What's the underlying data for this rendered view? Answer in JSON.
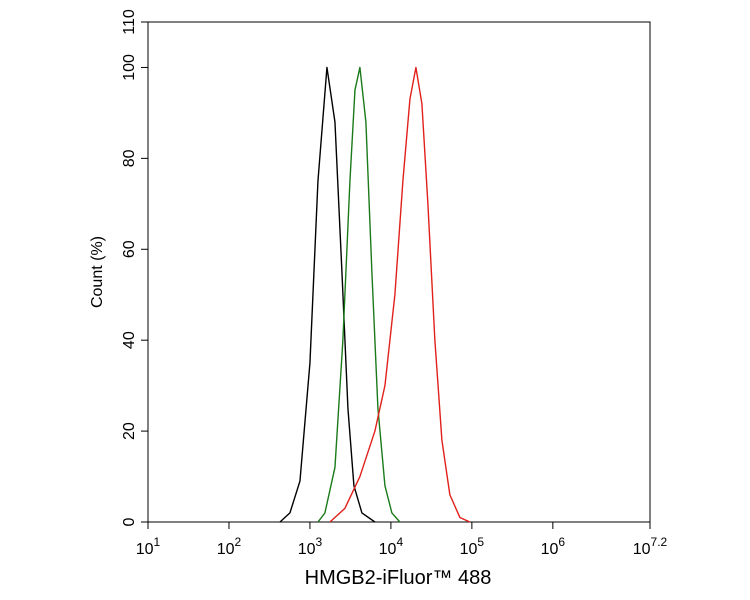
{
  "chart_data": {
    "type": "line",
    "xlabel": "HMGB2-iFluor™ 488",
    "ylabel": "Count  (%)",
    "xscale": "log",
    "xlim": [
      10,
      15848932
    ],
    "xticks": [
      {
        "value": 10,
        "label": "10",
        "sup": "1"
      },
      {
        "value": 100,
        "label": "10",
        "sup": "2"
      },
      {
        "value": 1000,
        "label": "10",
        "sup": "3"
      },
      {
        "value": 10000,
        "label": "10",
        "sup": "4"
      },
      {
        "value": 100000,
        "label": "10",
        "sup": "5"
      },
      {
        "value": 1000000,
        "label": "10",
        "sup": "6"
      },
      {
        "value": 15848932,
        "label": "10",
        "sup": "7.2"
      }
    ],
    "ylim": [
      0,
      110
    ],
    "yticks": [
      0,
      20,
      40,
      60,
      80,
      100,
      110
    ],
    "series": [
      {
        "color": "#000000",
        "x": [
          427,
          566,
          753,
          1000,
          1256,
          1622,
          2037,
          2485,
          2946,
          3493,
          4385,
          6344
        ],
        "values": [
          0,
          2,
          9,
          35,
          75,
          100,
          88,
          55,
          25,
          8,
          2,
          0
        ]
      },
      {
        "color": "#1a7a1a",
        "x": [
          1256,
          1531,
          2037,
          2553,
          3119,
          3597,
          4141,
          4911,
          5823,
          6912,
          8437,
          10280,
          12910
        ],
        "values": [
          0,
          2,
          12,
          40,
          75,
          95,
          100,
          88,
          55,
          25,
          8,
          2,
          0
        ]
      },
      {
        "color": "#e0201a",
        "x": [
          1766,
          2704,
          4141,
          6344,
          8437,
          11200,
          14060,
          17170,
          20370,
          24150,
          28640,
          34920,
          42660,
          53480,
          71110,
          94420
        ],
        "values": [
          0,
          3,
          10,
          20,
          30,
          50,
          75,
          93,
          100,
          92,
          70,
          40,
          18,
          6,
          1,
          0
        ]
      }
    ]
  }
}
